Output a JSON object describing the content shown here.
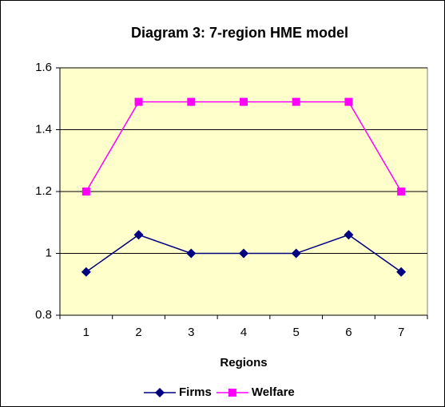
{
  "chart_data": {
    "type": "line",
    "title": "Diagram 3: 7-region HME model",
    "xlabel": "Regions",
    "categories": [
      "1",
      "2",
      "3",
      "4",
      "5",
      "6",
      "7"
    ],
    "series": [
      {
        "name": "Firms",
        "color": "#000080",
        "marker": "diamond",
        "values": [
          0.94,
          1.06,
          1,
          1,
          1,
          1.06,
          0.94
        ]
      },
      {
        "name": "Welfare",
        "color": "#ff00ff",
        "marker": "square",
        "values": [
          1.2,
          1.49,
          1.49,
          1.49,
          1.49,
          1.49,
          1.2
        ]
      }
    ],
    "ylim": [
      0.8,
      1.6
    ],
    "yticks": [
      0.8,
      1,
      1.2,
      1.4,
      1.6
    ],
    "grid": true,
    "legend": "bottom"
  }
}
